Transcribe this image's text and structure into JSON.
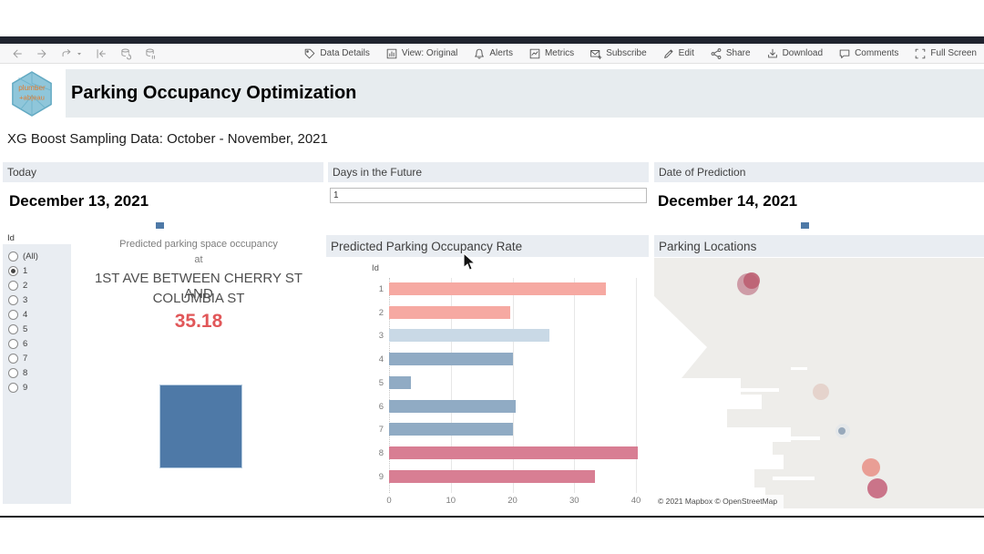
{
  "browser_toolbar": {
    "nav": [
      {
        "icon": "back-arrow-icon"
      },
      {
        "icon": "forward-arrow-icon"
      },
      {
        "icon": "redo-icon"
      },
      {
        "icon": "caret-down-icon"
      },
      {
        "icon": "revert-icon"
      },
      {
        "icon": "refresh-data-icon"
      },
      {
        "icon": "pause-updates-icon"
      }
    ],
    "actions": [
      {
        "icon": "tag-icon",
        "label": "Data Details"
      },
      {
        "icon": "view-icon",
        "label": "View: Original"
      },
      {
        "icon": "bell-icon",
        "label": "Alerts"
      },
      {
        "icon": "metrics-icon",
        "label": "Metrics"
      },
      {
        "icon": "envelope-icon",
        "label": "Subscribe"
      },
      {
        "icon": "pencil-icon",
        "label": "Edit"
      },
      {
        "icon": "share-icon",
        "label": "Share"
      },
      {
        "icon": "download-icon",
        "label": "Download"
      },
      {
        "icon": "comment-icon",
        "label": "Comments"
      },
      {
        "icon": "fullscreen-icon",
        "label": "Full Screen"
      }
    ]
  },
  "header": {
    "logo_top": "plumber",
    "logo_bottom": "+ab|eau",
    "title": "Parking Occupancy Optimization"
  },
  "subtitle": "XG Boost Sampling Data: October - November, 2021",
  "filters": {
    "today": {
      "label": "Today",
      "value": "December 13, 2021"
    },
    "days_in_future": {
      "label": "Days in the Future",
      "value": "1"
    },
    "date_of_prediction": {
      "label": "Date of Prediction",
      "value": "December 14, 2021"
    }
  },
  "id_filter": {
    "title": "Id",
    "options": [
      "(All)",
      "1",
      "2",
      "3",
      "4",
      "5",
      "6",
      "7",
      "8",
      "9"
    ],
    "selected": "1"
  },
  "prediction_card": {
    "line1": "Predicted parking space occupancy",
    "line2": "at",
    "location_line1": "1ST AVE BETWEEN CHERRY ST AND",
    "location_line2": "COLUMBIA ST",
    "value": "35.18",
    "value_color": "#e15759",
    "square_color": "#4e79a7"
  },
  "chart_data": {
    "type": "bar",
    "orientation": "horizontal",
    "title": "Predicted Parking Occupancy Rate",
    "category_axis_label": "Id",
    "categories": [
      "1",
      "2",
      "3",
      "4",
      "5",
      "6",
      "7",
      "8",
      "9"
    ],
    "values": [
      35.2,
      19.7,
      26.0,
      20.1,
      3.6,
      20.5,
      20.0,
      40.3,
      33.3
    ],
    "bar_colors": [
      "#f6a9a2",
      "#f6a9a2",
      "#c9d9e6",
      "#90abc4",
      "#90abc4",
      "#90abc4",
      "#90abc4",
      "#d87e93",
      "#d87e93"
    ],
    "xlim": [
      0,
      40
    ],
    "xticks": [
      0,
      10,
      20,
      30,
      40
    ],
    "grid": "vertical"
  },
  "map": {
    "title": "Parking Locations",
    "attribution": "© 2021 Mapbox  © OpenStreetMap",
    "points": [
      {
        "x": 103,
        "y": 29,
        "r": 12,
        "color": "#c88d9b",
        "opacity": 0.85
      },
      {
        "x": 107,
        "y": 25,
        "r": 9,
        "color": "#bd5f72",
        "opacity": 0.9
      },
      {
        "x": 183,
        "y": 147,
        "r": 9,
        "color": "#d9b3a9",
        "opacity": 0.45
      },
      {
        "x": 207,
        "y": 190,
        "r": 8,
        "color": "#e3e7ea",
        "opacity": 0.9
      },
      {
        "x": 206,
        "y": 190,
        "r": 4,
        "color": "#93a5b8",
        "opacity": 0.95
      },
      {
        "x": 238,
        "y": 230,
        "r": 10,
        "color": "#e89a90",
        "opacity": 0.95
      },
      {
        "x": 245,
        "y": 253,
        "r": 11,
        "color": "#c76e84",
        "opacity": 0.95
      }
    ]
  },
  "marks": {
    "date_mark_color": "#4e79a7"
  }
}
